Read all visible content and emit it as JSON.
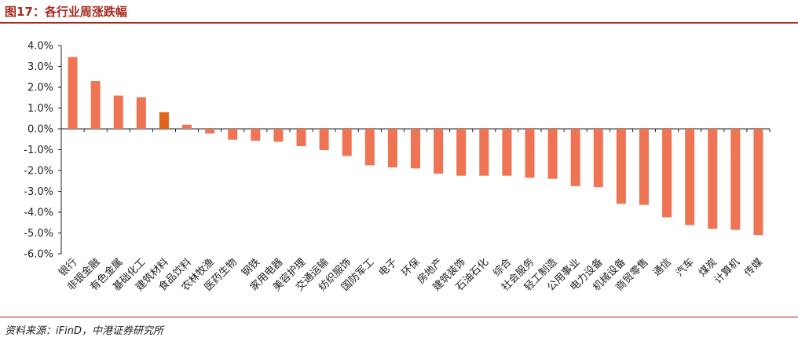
{
  "header": {
    "title": "图17：各行业周涨跌幅"
  },
  "footer": {
    "source": "资料来源：iFinD，中港证券研究所"
  },
  "colors": {
    "bar": "#ef7453",
    "highlight": "#e0641c",
    "accent": "#a52a1f",
    "axis": "#222222"
  },
  "chart_data": {
    "type": "bar",
    "title": "",
    "xlabel": "",
    "ylabel": "",
    "ylim": [
      -6.0,
      4.0
    ],
    "yticks": [
      "4.0%",
      "3.0%",
      "2.0%",
      "1.0%",
      "0.0%",
      "-1.0%",
      "-2.0%",
      "-3.0%",
      "-4.0%",
      "-5.0%",
      "-6.0%"
    ],
    "ytick_values": [
      4,
      3,
      2,
      1,
      0,
      -1,
      -2,
      -3,
      -4,
      -5,
      -6
    ],
    "grid": false,
    "highlight_index": 4,
    "categories": [
      "银行",
      "非银金融",
      "有色金属",
      "基础化工",
      "建筑材料",
      "食品饮料",
      "农林牧渔",
      "医药生物",
      "钢铁",
      "家用电器",
      "美容护理",
      "交通运输",
      "纺织服饰",
      "国防军工",
      "电子",
      "环保",
      "房地产",
      "建筑装饰",
      "石油石化",
      "综合",
      "社会服务",
      "轻工制造",
      "公用事业",
      "电力设备",
      "机械设备",
      "商贸零售",
      "通信",
      "汽车",
      "煤炭",
      "计算机",
      "传媒"
    ],
    "values": [
      3.45,
      2.3,
      1.6,
      1.52,
      0.8,
      0.2,
      -0.22,
      -0.52,
      -0.57,
      -0.62,
      -0.83,
      -1.02,
      -1.3,
      -1.75,
      -1.85,
      -1.9,
      -2.15,
      -2.25,
      -2.25,
      -2.25,
      -2.35,
      -2.4,
      -2.75,
      -2.8,
      -3.6,
      -3.65,
      -4.25,
      -4.62,
      -4.8,
      -4.85,
      -5.1
    ]
  }
}
